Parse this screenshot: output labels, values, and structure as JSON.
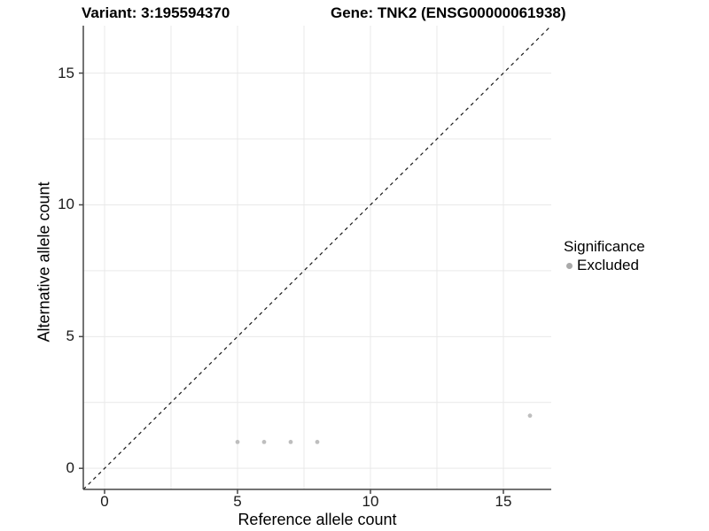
{
  "chart_data": {
    "type": "scatter",
    "title_left": "Variant: 3:195594370",
    "title_right": "Gene: TNK2 (ENSG00000061938)",
    "xlabel": "Reference allele count",
    "ylabel": "Alternative allele count",
    "xlim": [
      -0.8,
      16.8
    ],
    "ylim": [
      -0.8,
      16.8
    ],
    "x_ticks": [
      0,
      5,
      10,
      15
    ],
    "y_ticks": [
      0,
      5,
      10,
      15
    ],
    "gridlines_x": [
      0,
      2.5,
      5,
      7.5,
      10,
      12.5,
      15
    ],
    "gridlines_y": [
      0,
      2.5,
      5,
      7.5,
      10,
      12.5,
      15
    ],
    "grid_on": true,
    "series": [
      {
        "name": "Excluded",
        "points": [
          [
            5,
            1
          ],
          [
            6,
            1
          ],
          [
            7,
            1
          ],
          [
            8,
            1
          ],
          [
            16,
            2
          ]
        ],
        "color": "#bebebe"
      }
    ],
    "reference_line": {
      "kind": "identity y=x",
      "style": "dashed",
      "color": "#1a1a1a"
    },
    "legend": {
      "title": "Significance",
      "position": "right",
      "items": [
        {
          "label": "Excluded",
          "color": "#aaaaaa"
        }
      ]
    }
  },
  "colors": {
    "background": "#ffffff",
    "gridline": "#e9e9e9",
    "axis_line": "#464646",
    "tick_mark": "#464646",
    "point": "#bebebe",
    "identity_line": "#1a1a1a"
  }
}
